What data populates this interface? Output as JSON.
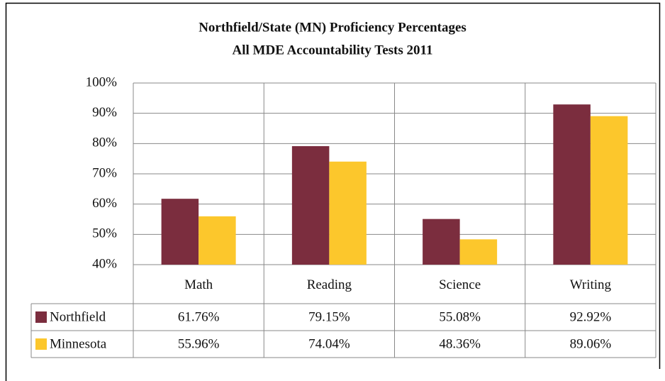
{
  "chart_data": {
    "type": "bar",
    "title": "Northfield/State (MN) Proficiency Percentages",
    "subtitle": "All MDE Accountability Tests 2011",
    "categories": [
      "Math",
      "Reading",
      "Science",
      "Writing"
    ],
    "series": [
      {
        "name": "Northfield",
        "color": "#7b2d3e",
        "values": [
          61.76,
          79.15,
          55.08,
          92.92
        ],
        "value_labels": [
          "61.76%",
          "79.15%",
          "55.08%",
          "92.92%"
        ]
      },
      {
        "name": "Minnesota",
        "color": "#fcc72c",
        "values": [
          55.96,
          74.04,
          48.36,
          89.06
        ],
        "value_labels": [
          "55.96%",
          "74.04%",
          "48.36%",
          "89.06%"
        ]
      }
    ],
    "ylim": [
      40,
      100
    ],
    "yticks": [
      {
        "value": 40,
        "label": "40%"
      },
      {
        "value": 50,
        "label": "50%"
      },
      {
        "value": 60,
        "label": "60%"
      },
      {
        "value": 70,
        "label": "70%"
      },
      {
        "value": 80,
        "label": "80%"
      },
      {
        "value": 90,
        "label": "90%"
      },
      {
        "value": 100,
        "label": "100%"
      }
    ],
    "grid": true
  }
}
